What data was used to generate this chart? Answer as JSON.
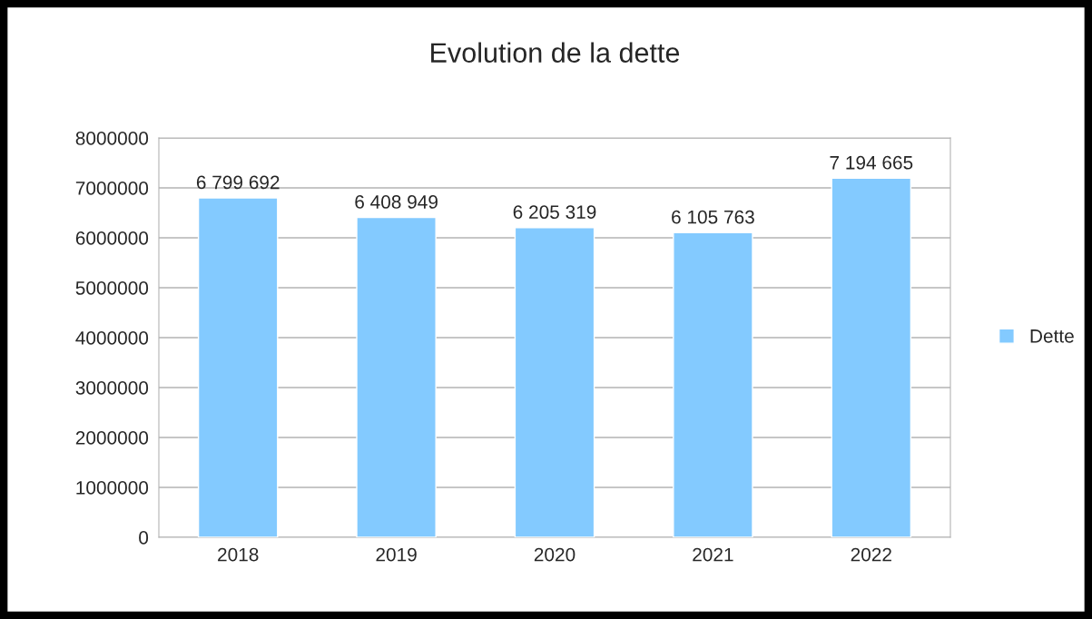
{
  "chart_data": {
    "type": "bar",
    "title": "Evolution de la dette",
    "categories": [
      "2018",
      "2019",
      "2020",
      "2021",
      "2022"
    ],
    "series": [
      {
        "name": "Dette",
        "color": "#83caff",
        "values": [
          6799692,
          6408949,
          6205319,
          6105763,
          7194665
        ],
        "value_labels": [
          "6 799 692",
          "6 408 949",
          "6 205 319",
          "6 105 763",
          "7 194 665"
        ]
      }
    ],
    "ylim": [
      0,
      8000000
    ],
    "yticks": [
      0,
      1000000,
      2000000,
      3000000,
      4000000,
      5000000,
      6000000,
      7000000,
      8000000
    ],
    "grid": "y",
    "legend": "right"
  }
}
